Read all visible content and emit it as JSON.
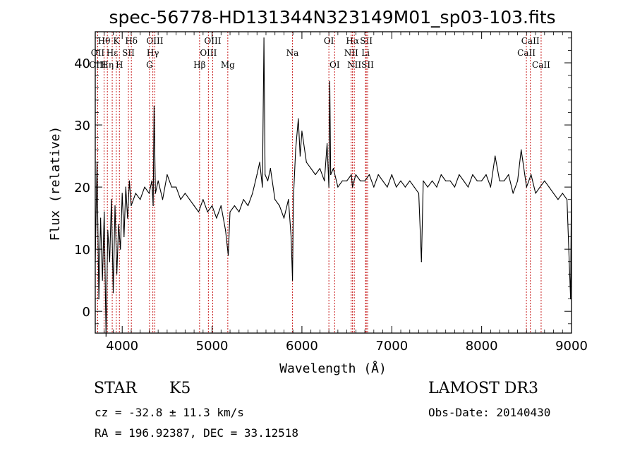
{
  "chart_data": {
    "type": "line",
    "title": "spec-56778-HD131344N323149M01_sp03-103.fits",
    "xlabel": "Wavelength (Å)",
    "ylabel": "Flux (relative)",
    "xlim": [
      3700,
      9000
    ],
    "ylim": [
      -3.5,
      45
    ],
    "xticks": [
      4000,
      5000,
      6000,
      7000,
      8000,
      9000
    ],
    "yticks": [
      0,
      10,
      20,
      30,
      40
    ],
    "grid": false,
    "series": [
      {
        "x": [
          3700,
          3720,
          3740,
          3760,
          3780,
          3800,
          3820,
          3840,
          3860,
          3880,
          3900,
          3920,
          3940,
          3960,
          3980,
          4000,
          4020,
          4040,
          4060,
          4080,
          4100,
          4150,
          4200,
          4250,
          4300,
          4330,
          4345,
          4355,
          4370,
          4400,
          4450,
          4500,
          4550,
          4600,
          4650,
          4700,
          4750,
          4800,
          4850,
          4900,
          4950,
          5000,
          5050,
          5100,
          5150,
          5180,
          5200,
          5250,
          5300,
          5350,
          5400,
          5450,
          5500,
          5530,
          5560,
          5577,
          5590,
          5620,
          5650,
          5700,
          5750,
          5800,
          5850,
          5880,
          5895,
          5905,
          5930,
          5960,
          5980,
          6000,
          6020,
          6050,
          6100,
          6150,
          6200,
          6250,
          6280,
          6300,
          6310,
          6320,
          6350,
          6400,
          6450,
          6500,
          6550,
          6563,
          6580,
          6600,
          6650,
          6700,
          6750,
          6800,
          6850,
          6900,
          6950,
          7000,
          7050,
          7100,
          7150,
          7200,
          7250,
          7300,
          7330,
          7350,
          7400,
          7450,
          7500,
          7550,
          7600,
          7650,
          7700,
          7750,
          7800,
          7850,
          7900,
          7950,
          8000,
          8050,
          8100,
          8150,
          8200,
          8250,
          8300,
          8350,
          8400,
          8440,
          8500,
          8550,
          8600,
          8650,
          8700,
          8750,
          8800,
          8850,
          8900,
          8950,
          8990,
          9000
        ],
        "y": [
          8,
          24,
          2,
          15,
          5,
          16,
          -4,
          13,
          8,
          18,
          3,
          17,
          6,
          14,
          10,
          19,
          12,
          20,
          15,
          21,
          17,
          19,
          18,
          20,
          19,
          21,
          17,
          33,
          19,
          21,
          18,
          22,
          20,
          20,
          18,
          19,
          18,
          17,
          16,
          18,
          16,
          17,
          15,
          17,
          13,
          9,
          16,
          17,
          16,
          18,
          17,
          19,
          22,
          24,
          20,
          44,
          22,
          21,
          23,
          18,
          17,
          15,
          18,
          12,
          5,
          18,
          26,
          31,
          25,
          29,
          27,
          24,
          23,
          22,
          23,
          21,
          27,
          20,
          37,
          22,
          23,
          20,
          21,
          21,
          22,
          20,
          21,
          22,
          21,
          21,
          22,
          20,
          22,
          21,
          20,
          22,
          20,
          21,
          20,
          21,
          20,
          19,
          8,
          21,
          20,
          21,
          20,
          22,
          21,
          21,
          20,
          22,
          21,
          20,
          22,
          21,
          21,
          22,
          20,
          25,
          21,
          21,
          22,
          19,
          21,
          26,
          20,
          22,
          19,
          20,
          21,
          20,
          19,
          18,
          19,
          18,
          2,
          22
        ]
      }
    ],
    "line_markers": [
      {
        "label": "Hθ",
        "wave": 3798,
        "row": 0
      },
      {
        "label": "OII",
        "wave": 3727,
        "row": 1
      },
      {
        "label": "OIII",
        "wave": 3727,
        "row": 2
      },
      {
        "label": "Hε",
        "wave": 3889,
        "row": 1
      },
      {
        "label": "Hη",
        "wave": 3835,
        "row": 2
      },
      {
        "label": "K",
        "wave": 3934,
        "row": 0
      },
      {
        "label": "SII",
        "wave": 4069,
        "row": 1
      },
      {
        "label": "H",
        "wave": 3969,
        "row": 2
      },
      {
        "label": "Hδ",
        "wave": 4102,
        "row": 0
      },
      {
        "label": "OIII",
        "wave": 4363,
        "row": 0
      },
      {
        "label": "Hγ",
        "wave": 4341,
        "row": 1
      },
      {
        "label": "G",
        "wave": 4304,
        "row": 2
      },
      {
        "label": "OIII",
        "wave": 5007,
        "row": 0
      },
      {
        "label": "OIII",
        "wave": 4959,
        "row": 1
      },
      {
        "label": "Hβ",
        "wave": 4861,
        "row": 2
      },
      {
        "label": "Mg",
        "wave": 5175,
        "row": 2
      },
      {
        "label": "Na",
        "wave": 5894,
        "row": 1
      },
      {
        "label": "OI",
        "wave": 6300,
        "row": 0
      },
      {
        "label": "OI",
        "wave": 6364,
        "row": 2
      },
      {
        "label": "Hα",
        "wave": 6563,
        "row": 0
      },
      {
        "label": "NII",
        "wave": 6548,
        "row": 1
      },
      {
        "label": "NII",
        "wave": 6583,
        "row": 2
      },
      {
        "label": "SII",
        "wave": 6716,
        "row": 0
      },
      {
        "label": "Li",
        "wave": 6708,
        "row": 1
      },
      {
        "label": "SII",
        "wave": 6731,
        "row": 2
      },
      {
        "label": "CaII",
        "wave": 8542,
        "row": 0
      },
      {
        "label": "CaII",
        "wave": 8498,
        "row": 1
      },
      {
        "label": "CaII",
        "wave": 8662,
        "row": 2
      }
    ]
  },
  "info": {
    "class": "STAR",
    "subclass": "K5",
    "survey": "LAMOST DR3",
    "cz": "cz = -32.8 ± 11.3 km/s",
    "obs_date": "Obs-Date: 20140430",
    "radec": "RA = 196.92387, DEC =  33.12518"
  },
  "colors": {
    "line": "#000000",
    "marker": "#c81e1e"
  }
}
